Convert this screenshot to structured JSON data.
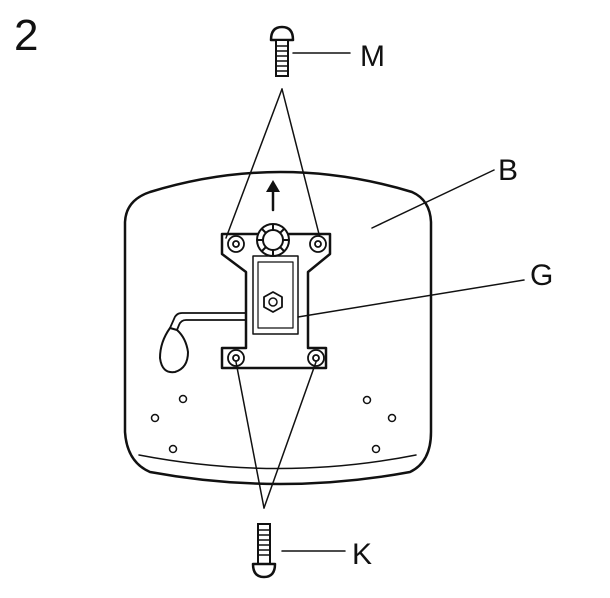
{
  "step_number": "2",
  "labels": {
    "screw_top": "M",
    "seat": "B",
    "mechanism": "G",
    "screw_bottom": "K"
  }
}
